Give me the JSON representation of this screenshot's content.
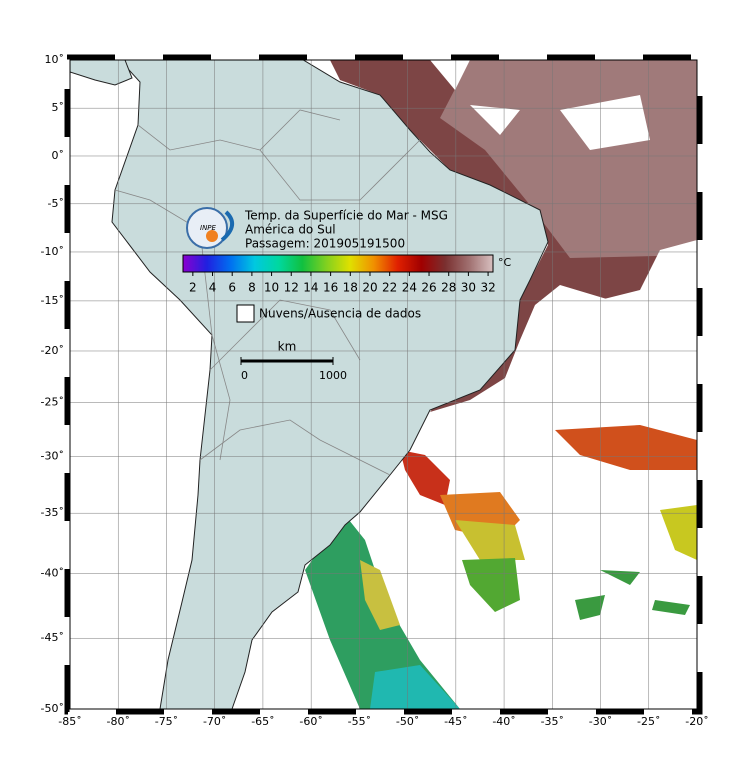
{
  "title": [
    "Temp. da Superfície do Mar - MSG",
    "América do Sul",
    "Passagem: 201905191500"
  ],
  "logo": "INPE",
  "colorbar": {
    "range": [
      1,
      32.5
    ],
    "ticks": [
      2,
      4,
      6,
      8,
      10,
      12,
      14,
      16,
      18,
      20,
      22,
      24,
      26,
      28,
      30,
      32
    ],
    "unit": "°C",
    "colors": [
      "#8a00d0",
      "#2020e0",
      "#0070f0",
      "#00c8e0",
      "#00d8a0",
      "#10c040",
      "#80d020",
      "#e0e000",
      "#f09000",
      "#e02000",
      "#a00000",
      "#7a3030",
      "#a07070",
      "#d8c0c0"
    ]
  },
  "legend": "Nuvens/Ausencia de dados",
  "scale_bar": {
    "unit": "km",
    "ticks": [
      0,
      1000
    ]
  },
  "map": {
    "lon_ticks": [
      {
        "value": -85,
        "label": "-85˚"
      },
      {
        "value": -80,
        "label": "-80˚"
      },
      {
        "value": -75,
        "label": "-75˚"
      },
      {
        "value": -70,
        "label": "-70˚"
      },
      {
        "value": -65,
        "label": "-65˚"
      },
      {
        "value": -60,
        "label": "-60˚"
      },
      {
        "value": -55,
        "label": "-55˚"
      },
      {
        "value": -50,
        "label": "-50˚"
      },
      {
        "value": -45,
        "label": "-45˚"
      },
      {
        "value": -40,
        "label": "-40˚"
      },
      {
        "value": -35,
        "label": "-35˚"
      },
      {
        "value": -30,
        "label": "-30˚"
      },
      {
        "value": -25,
        "label": "-25˚"
      },
      {
        "value": -20,
        "label": "-20˚"
      }
    ],
    "lat_ticks": [
      {
        "value": 10,
        "label": "10˚"
      },
      {
        "value": 5,
        "label": "5˚"
      },
      {
        "value": 0,
        "label": "0˚"
      },
      {
        "value": -5,
        "label": "-5˚"
      },
      {
        "value": -10,
        "label": "-10˚"
      },
      {
        "value": -15,
        "label": "-15˚"
      },
      {
        "value": -20,
        "label": "-20˚"
      },
      {
        "value": -25,
        "label": "-25˚"
      },
      {
        "value": -30,
        "label": "-30˚"
      },
      {
        "value": -35,
        "label": "-35˚"
      },
      {
        "value": -40,
        "label": "-40˚"
      },
      {
        "value": -45,
        "label": "-45˚"
      },
      {
        "value": -50,
        "label": "-50˚"
      }
    ]
  }
}
